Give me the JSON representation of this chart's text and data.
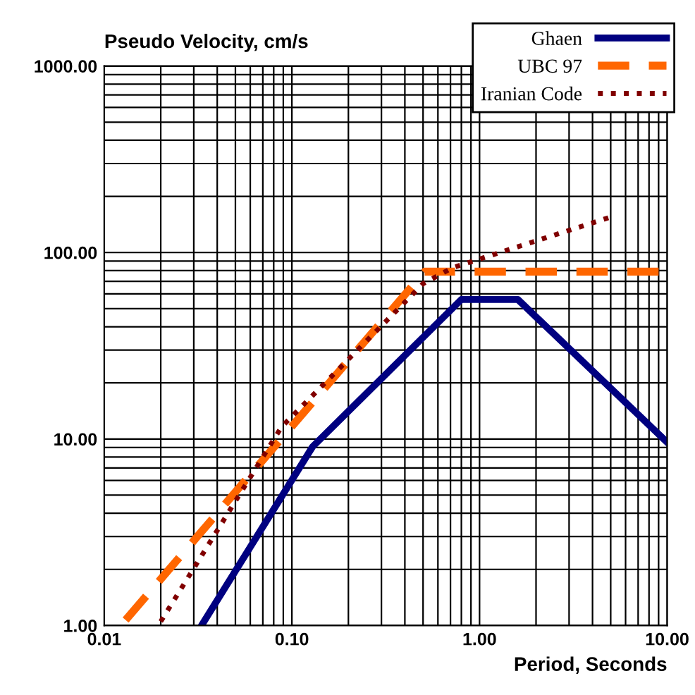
{
  "chart_data": {
    "type": "line",
    "ylabel": "Pseudo Velocity, cm/s",
    "xlabel": "Period, Seconds",
    "log": "xy",
    "grid": true,
    "legend": "top right",
    "xlim": [
      0.01,
      10
    ],
    "ylim": [
      1,
      1000
    ],
    "xticks": [
      {
        "value": 0.01,
        "label": "0.01"
      },
      {
        "value": 0.1,
        "label": "0.10"
      },
      {
        "value": 1,
        "label": "1.00"
      },
      {
        "value": 10,
        "label": "10.00"
      }
    ],
    "yticks": [
      {
        "value": 1,
        "label": "1.00"
      },
      {
        "value": 10,
        "label": "10.00"
      },
      {
        "value": 100,
        "label": "100.00"
      },
      {
        "value": 1000,
        "label": "1000.00"
      }
    ],
    "series": [
      {
        "name": "Ghaen",
        "color": "#000080",
        "line_style": "solid",
        "x": [
          0.033,
          0.129,
          0.8,
          1.6,
          10
        ],
        "values": [
          1,
          9.1,
          56,
          56,
          9.6
        ]
      },
      {
        "name": "UBC 97",
        "color": "#ff6600",
        "line_style": "dashed",
        "x": [
          0.013,
          0.51,
          10
        ],
        "values": [
          1.07,
          79,
          79
        ]
      },
      {
        "name": "Iranian Code",
        "color": "#800000",
        "line_style": "dotted",
        "x": [
          0.02,
          0.088,
          0.5,
          0.72,
          5
        ],
        "values": [
          1.05,
          11.6,
          68,
          83,
          155
        ]
      }
    ]
  }
}
